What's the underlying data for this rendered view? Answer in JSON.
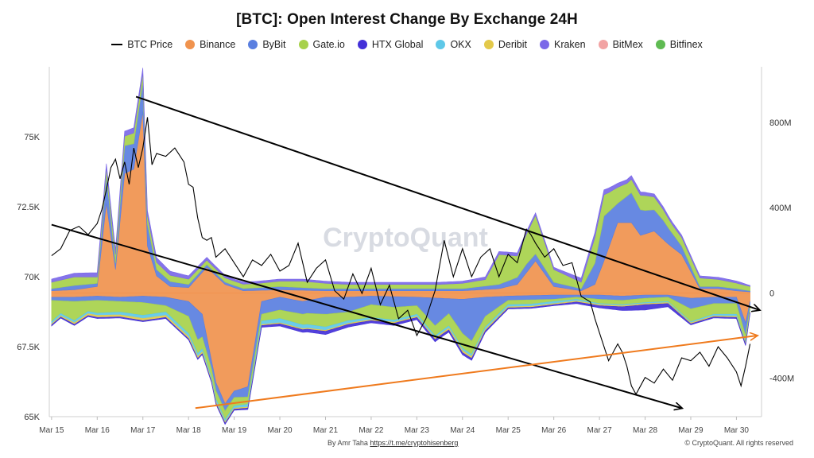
{
  "chart_data": {
    "type": "area",
    "title": "[BTC]: Open Interest Change By Exchange 24H",
    "legend": [
      {
        "name": "BTC Price",
        "color": "#000000",
        "kind": "line"
      },
      {
        "name": "Binance",
        "color": "#f0934e",
        "kind": "dot"
      },
      {
        "name": "ByBit",
        "color": "#5a7fe0",
        "kind": "dot"
      },
      {
        "name": "Gate.io",
        "color": "#a7d14b",
        "kind": "dot"
      },
      {
        "name": "HTX Global",
        "color": "#4330d8",
        "kind": "dot"
      },
      {
        "name": "OKX",
        "color": "#5ec8e8",
        "kind": "dot"
      },
      {
        "name": "Deribit",
        "color": "#e3c94a",
        "kind": "dot"
      },
      {
        "name": "Kraken",
        "color": "#7b68e8",
        "kind": "dot"
      },
      {
        "name": "BitMex",
        "color": "#f2a3a3",
        "kind": "dot"
      },
      {
        "name": "Bitfinex",
        "color": "#5fbb52",
        "kind": "dot"
      }
    ],
    "legend_placement": "top-center",
    "left_axis": {
      "ticks": [
        "75K",
        "72.5K",
        "70K",
        "67.5K",
        "65K"
      ],
      "values": [
        75000,
        72500,
        70000,
        67500,
        65000
      ],
      "range": [
        65000,
        77500
      ]
    },
    "right_axis": {
      "ticks": [
        "800M",
        "400M",
        "0",
        "-400M"
      ],
      "values": [
        800,
        400,
        0,
        -400
      ],
      "range": [
        -580,
        1060
      ]
    },
    "x_ticks": [
      "Mar 15",
      "Mar 16",
      "Mar 17",
      "Mar 18",
      "Mar 19",
      "Mar 20",
      "Mar 21",
      "Mar 22",
      "Mar 23",
      "Mar 24",
      "Mar 25",
      "Mar 26",
      "Mar 27",
      "Mar 28",
      "Mar 29",
      "Mar 30"
    ],
    "x_range": [
      14.95,
      30.55
    ],
    "btc_price": {
      "x": [
        15.0,
        15.2,
        15.4,
        15.6,
        15.8,
        16.0,
        16.1,
        16.2,
        16.3,
        16.4,
        16.5,
        16.6,
        16.7,
        16.8,
        16.9,
        17.0,
        17.1,
        17.2,
        17.3,
        17.5,
        17.7,
        17.9,
        18.0,
        18.1,
        18.2,
        18.3,
        18.4,
        18.5,
        18.6,
        18.8,
        19.0,
        19.2,
        19.4,
        19.6,
        19.8,
        20.0,
        20.2,
        20.4,
        20.6,
        20.8,
        21.0,
        21.2,
        21.4,
        21.6,
        21.8,
        22.0,
        22.2,
        22.4,
        22.6,
        22.8,
        23.0,
        23.2,
        23.4,
        23.6,
        23.8,
        24.0,
        24.2,
        24.4,
        24.6,
        24.8,
        25.0,
        25.2,
        25.4,
        25.5,
        25.6,
        25.8,
        26.0,
        26.2,
        26.4,
        26.6,
        26.8,
        26.9,
        27.0,
        27.2,
        27.4,
        27.5,
        27.6,
        27.7,
        27.8,
        28.0,
        28.2,
        28.4,
        28.6,
        28.8,
        29.0,
        29.2,
        29.4,
        29.6,
        29.8,
        30.0,
        30.1,
        30.2,
        30.3
      ],
      "y": [
        70750,
        71000,
        71650,
        71800,
        71500,
        71900,
        72400,
        73100,
        73900,
        74200,
        73500,
        74100,
        73300,
        74600,
        73900,
        74600,
        75700,
        74000,
        74400,
        74300,
        74600,
        74100,
        73300,
        73200,
        72100,
        71400,
        71300,
        71400,
        70700,
        71000,
        70500,
        70000,
        70600,
        70400,
        70800,
        70200,
        70400,
        71200,
        69800,
        70300,
        70600,
        69500,
        69200,
        70100,
        69400,
        70300,
        69000,
        69700,
        68500,
        68800,
        67900,
        68500,
        69500,
        71300,
        70000,
        71000,
        70000,
        70700,
        71000,
        70000,
        70800,
        70500,
        71700,
        71500,
        71200,
        70700,
        71000,
        70400,
        70500,
        69300,
        69100,
        68500,
        68000,
        67000,
        67600,
        67300,
        66800,
        66100,
        65800,
        66400,
        66200,
        66700,
        66300,
        67100,
        67000,
        67300,
        66800,
        67500,
        67100,
        66600,
        66100,
        66800,
        67600
      ]
    },
    "series": [
      {
        "name": "Binance",
        "stack": "pos",
        "x": [
          15.0,
          15.5,
          16.0,
          16.2,
          16.4,
          16.6,
          16.8,
          17.0,
          17.1,
          17.3,
          17.6,
          18.0,
          18.4,
          18.8,
          19.2,
          20.0,
          21.0,
          22.0,
          23.0,
          24.0,
          24.8,
          25.2,
          25.6,
          26.0,
          26.6,
          26.9,
          27.1,
          27.4,
          27.7,
          27.9,
          28.2,
          28.5,
          28.8,
          29.2,
          29.6,
          30.0,
          30.3
        ],
        "values": [
          10,
          15,
          30,
          420,
          110,
          560,
          580,
          850,
          220,
          80,
          30,
          25,
          120,
          40,
          10,
          15,
          10,
          10,
          10,
          10,
          20,
          40,
          150,
          30,
          10,
          40,
          150,
          330,
          330,
          270,
          290,
          230,
          180,
          20,
          20,
          10,
          5
        ]
      },
      {
        "name": "ByBit",
        "stack": "pos",
        "x": [
          15.0,
          15.5,
          16.0,
          16.2,
          16.4,
          16.6,
          16.8,
          17.0,
          17.3,
          18.0,
          19.0,
          20.0,
          21.0,
          22.0,
          23.0,
          24.0,
          24.8,
          25.4,
          26.0,
          26.6,
          26.9,
          27.1,
          27.4,
          27.7,
          28.0,
          28.4,
          28.8,
          29.2,
          30.0,
          30.3
        ],
        "values": [
          10,
          20,
          15,
          130,
          30,
          130,
          120,
          140,
          30,
          15,
          10,
          15,
          10,
          10,
          10,
          10,
          20,
          40,
          20,
          10,
          100,
          210,
          90,
          140,
          110,
          90,
          40,
          10,
          10,
          5
        ]
      },
      {
        "name": "Gate.io",
        "stack": "pos",
        "x": [
          15.0,
          15.5,
          16.0,
          16.4,
          16.8,
          17.0,
          17.5,
          18.5,
          19.5,
          20.5,
          21.5,
          22.5,
          23.5,
          24.5,
          24.8,
          25.2,
          25.6,
          26.0,
          26.6,
          26.9,
          27.2,
          27.6,
          28.0,
          28.6,
          29.2,
          29.8,
          30.3
        ],
        "values": [
          30,
          40,
          30,
          40,
          50,
          40,
          30,
          20,
          20,
          30,
          20,
          20,
          20,
          30,
          140,
          100,
          180,
          60,
          30,
          120,
          90,
          60,
          70,
          40,
          40,
          30,
          20
        ]
      },
      {
        "name": "Kraken",
        "stack": "pos",
        "x": [
          15.0,
          16.0,
          17.0,
          18.0,
          19.0,
          20.0,
          21.0,
          22.0,
          23.0,
          24.0,
          25.0,
          26.0,
          27.0,
          27.3,
          28.0,
          29.0,
          30.0,
          30.3
        ],
        "values": [
          15,
          20,
          25,
          15,
          10,
          10,
          10,
          10,
          10,
          10,
          15,
          10,
          25,
          20,
          15,
          10,
          10,
          5
        ]
      },
      {
        "name": "Binance",
        "stack": "neg",
        "x": [
          15.0,
          15.5,
          16.0,
          16.5,
          17.0,
          17.5,
          18.0,
          18.3,
          18.6,
          18.8,
          19.0,
          19.3,
          19.6,
          20.0,
          20.5,
          21.0,
          21.5,
          22.0,
          23.0,
          24.0,
          24.5,
          25.0,
          26.0,
          26.5,
          27.0,
          27.5,
          28.0,
          28.5,
          29.0,
          29.5,
          30.0,
          30.2,
          30.3
        ],
        "values": [
          -20,
          -20,
          -15,
          -20,
          -15,
          -20,
          -40,
          -100,
          -420,
          -520,
          -460,
          -440,
          -40,
          -20,
          -40,
          -20,
          -20,
          -15,
          -20,
          -30,
          -20,
          -15,
          -10,
          -10,
          -10,
          -15,
          -10,
          -10,
          -25,
          -20,
          -20,
          -140,
          -40
        ]
      },
      {
        "name": "ByBit",
        "stack": "neg",
        "x": [
          15.0,
          15.5,
          16.0,
          16.5,
          17.0,
          17.5,
          18.0,
          18.2,
          18.5,
          19.0,
          19.5,
          20.0,
          20.6,
          21.0,
          21.5,
          22.0,
          22.5,
          23.0,
          23.4,
          23.7,
          24.0,
          24.2,
          24.5,
          25.0,
          25.5,
          26.0,
          26.5,
          27.0,
          27.5,
          28.0,
          28.5,
          29.0,
          29.5,
          30.0,
          30.2,
          30.3
        ],
        "values": [
          -15,
          -20,
          -20,
          -20,
          -30,
          -40,
          -70,
          -140,
          -40,
          -30,
          -60,
          -60,
          -60,
          -80,
          -70,
          -40,
          -50,
          -40,
          -130,
          -70,
          -160,
          -200,
          -90,
          -20,
          -20,
          -20,
          -10,
          -20,
          -20,
          -15,
          -10,
          -50,
          -30,
          -30,
          -60,
          -20
        ]
      },
      {
        "name": "Gate.io",
        "stack": "neg",
        "x": [
          15.0,
          15.2,
          15.5,
          15.8,
          16.0,
          16.5,
          17.0,
          17.5,
          18.0,
          18.5,
          19.0,
          19.5,
          20.0,
          20.5,
          21.0,
          21.5,
          22.0,
          22.5,
          23.0,
          23.5,
          24.0,
          24.5,
          25.0,
          25.5,
          26.0,
          26.5,
          27.0,
          27.5,
          28.0,
          28.5,
          29.0,
          29.5,
          30.0,
          30.3
        ],
        "values": [
          -100,
          -60,
          -90,
          -50,
          -60,
          -50,
          -60,
          -30,
          -80,
          -40,
          -40,
          -30,
          -40,
          -50,
          -60,
          -40,
          -60,
          -60,
          -40,
          -50,
          -70,
          -50,
          -20,
          -20,
          -10,
          -10,
          -20,
          -20,
          -20,
          -20,
          -60,
          -50,
          -50,
          -20
        ]
      },
      {
        "name": "OKX",
        "stack": "neg",
        "x": [
          15.0,
          16.0,
          17.0,
          18.0,
          19.0,
          20.0,
          21.0,
          22.0,
          23.0,
          24.0,
          25.0,
          26.0,
          27.0,
          28.0,
          29.0,
          30.0,
          30.3
        ],
        "values": [
          -10,
          -10,
          -15,
          -15,
          -10,
          -20,
          -15,
          -10,
          -10,
          -10,
          -10,
          -10,
          -5,
          -5,
          -5,
          -10,
          -5
        ]
      },
      {
        "name": "Deribit",
        "stack": "neg",
        "x": [
          15.0,
          16.0,
          17.0,
          18.0,
          19.0,
          20.0,
          21.0,
          22.0,
          23.0,
          24.0,
          25.0,
          26.0,
          27.0,
          28.0,
          29.0,
          30.0,
          30.3
        ],
        "values": [
          -5,
          -10,
          -10,
          -10,
          -5,
          -5,
          -5,
          -5,
          -5,
          -10,
          -5,
          -5,
          -5,
          -5,
          -5,
          -5,
          -5
        ]
      },
      {
        "name": "HTX Global",
        "stack": "neg",
        "x": [
          15.0,
          16.0,
          17.0,
          18.0,
          19.0,
          20.0,
          21.0,
          22.0,
          23.0,
          24.0,
          25.0,
          26.0,
          27.0,
          28.0,
          28.5,
          29.0,
          30.0,
          30.3
        ],
        "values": [
          -5,
          -5,
          -5,
          -5,
          -5,
          -10,
          -15,
          -10,
          -10,
          -10,
          -5,
          -5,
          -10,
          -25,
          -15,
          -5,
          -5,
          -5
        ]
      }
    ],
    "trend_lines": [
      {
        "color": "#000000",
        "x": [
          16.85,
          30.5
        ],
        "y": [
          920,
          -80
        ]
      },
      {
        "color": "#000000",
        "x": [
          15.0,
          28.8
        ],
        "y": [
          320,
          -540
        ]
      },
      {
        "color": "#ef7a1d",
        "x": [
          18.15,
          30.45
        ],
        "y": [
          -540,
          -200
        ]
      }
    ],
    "watermark": "CryptoQuant",
    "footer": {
      "author": "By Amr Taha",
      "link": "https://t.me/cryptohisenberg",
      "copyright": "© CryptoQuant. All rights reserved"
    }
  }
}
